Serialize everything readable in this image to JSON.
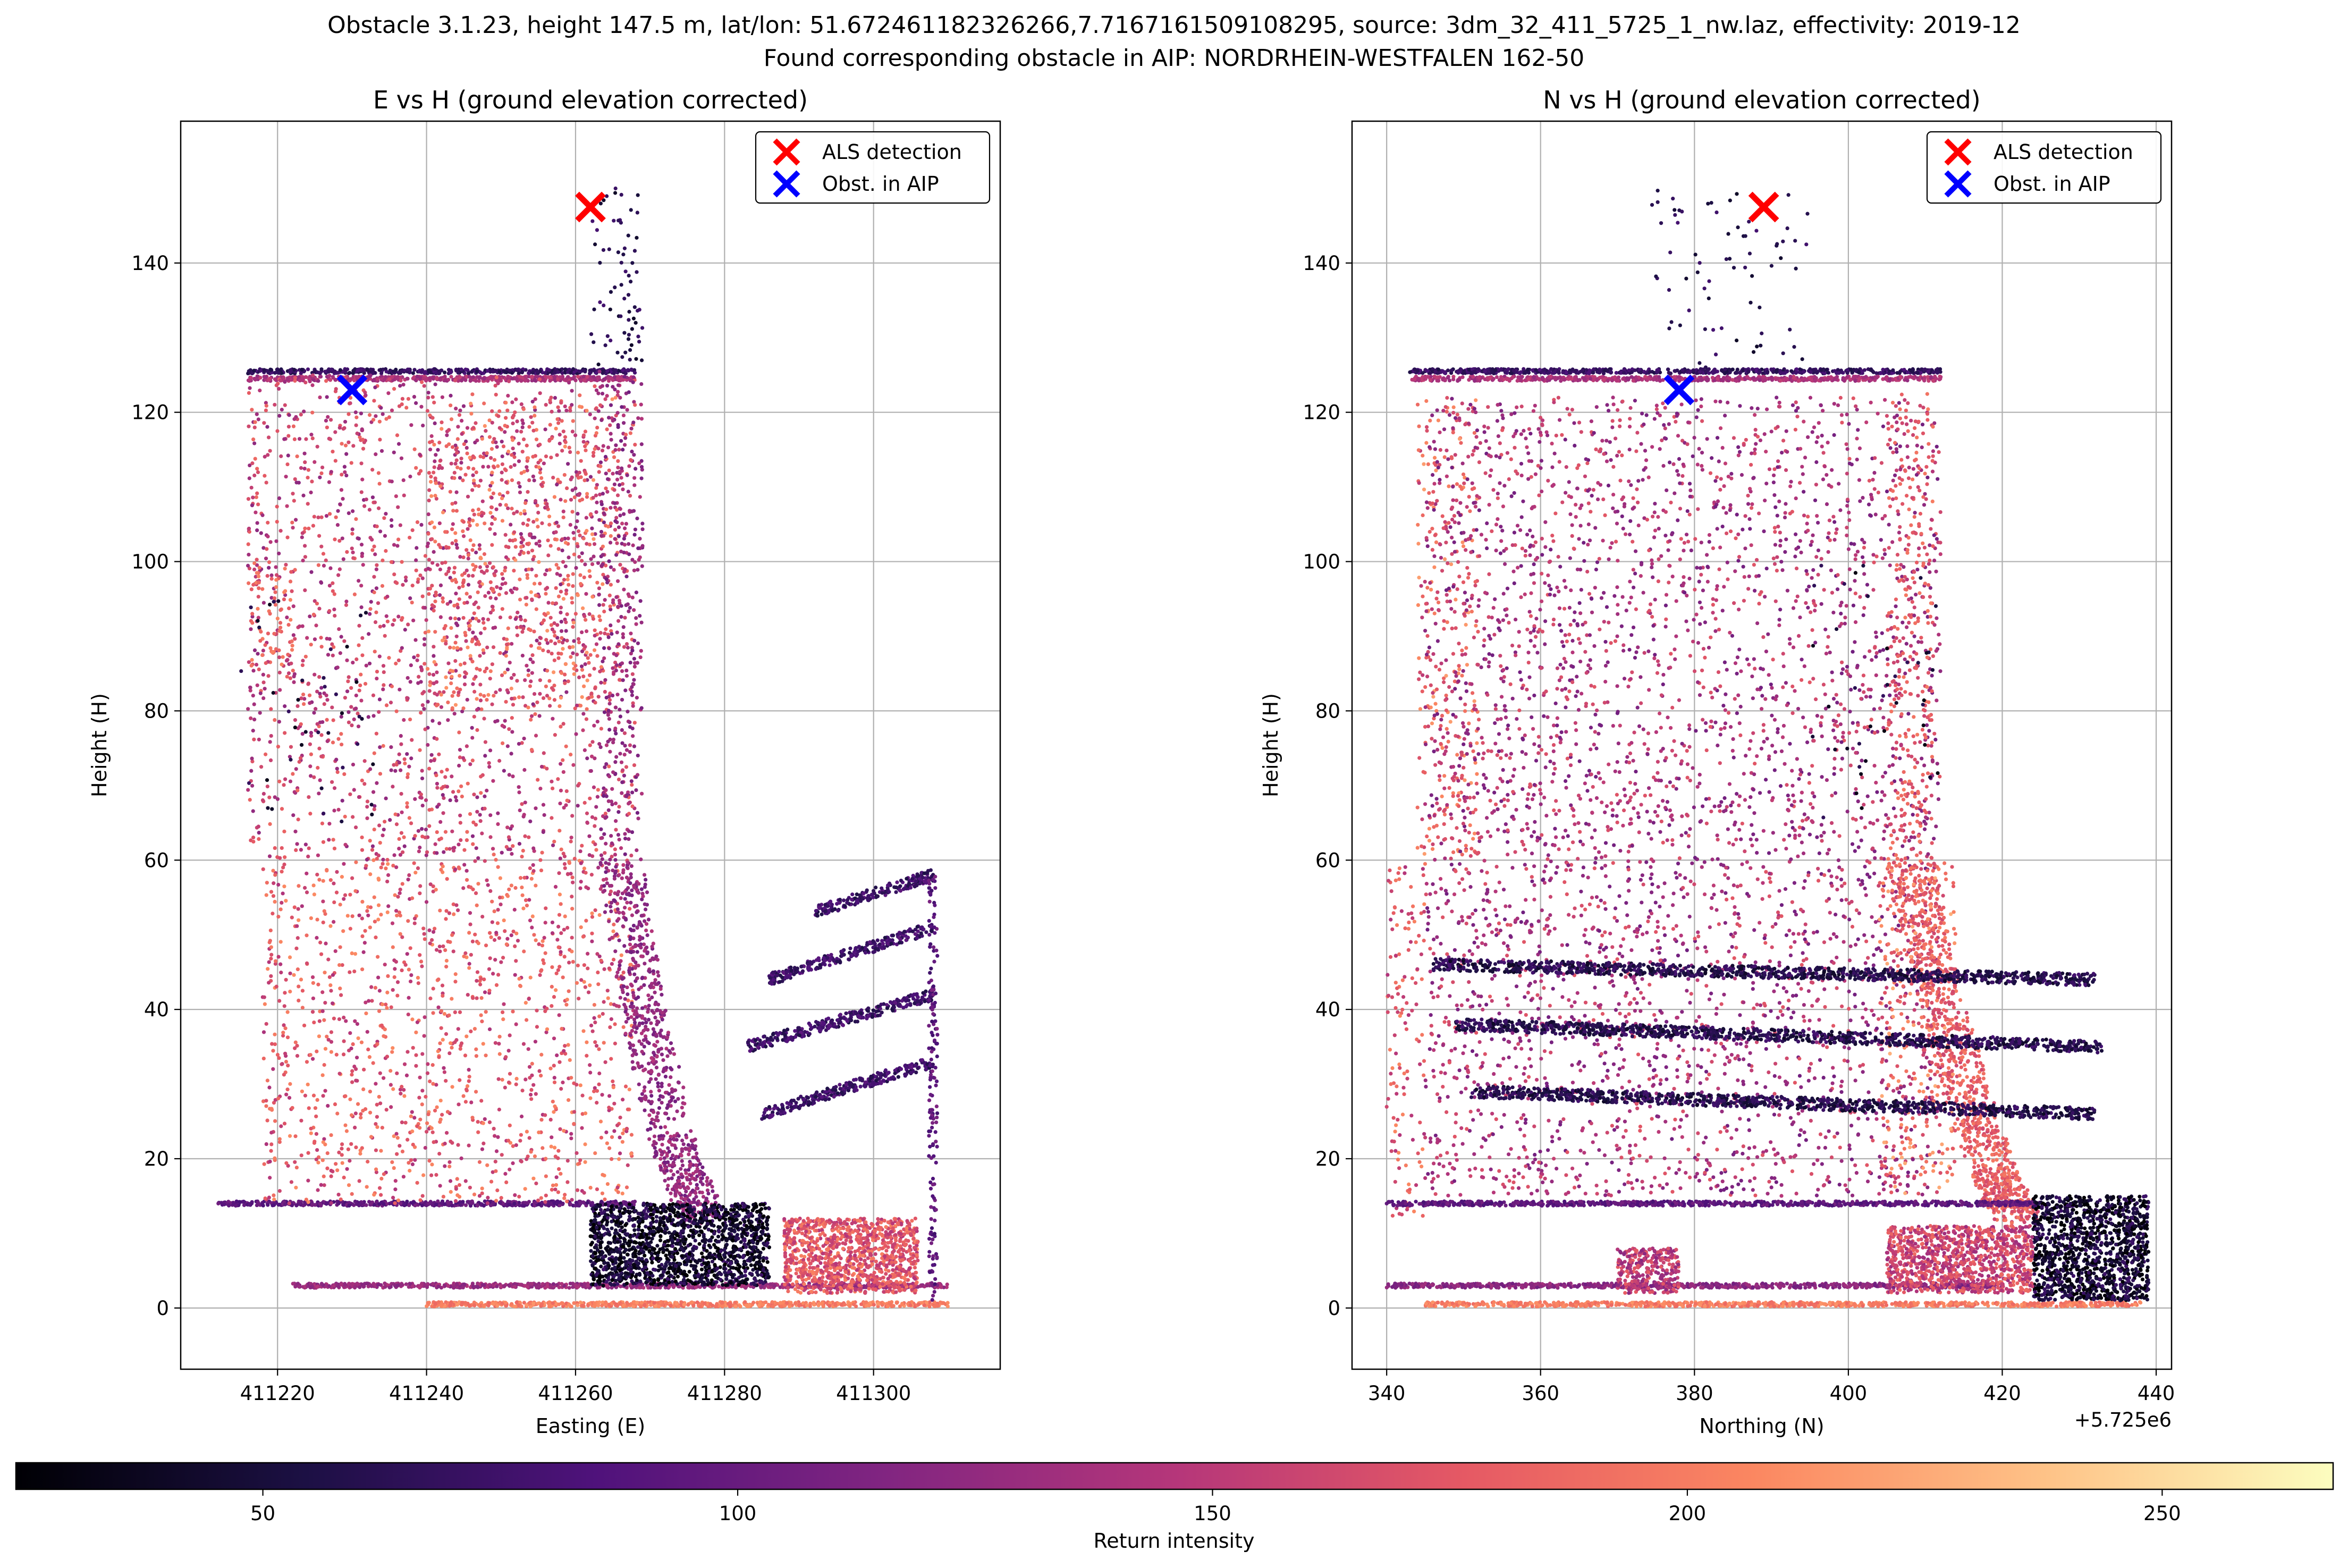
{
  "figure": {
    "title_line1": "Obstacle 3.1.23, height 147.5 m, lat/lon: 51.672461182326266,7.7167161509108295, source: 3dm_32_411_5725_1_nw.laz, effectivity: 2019-12",
    "title_line2": "Found corresponding obstacle in AIP: NORDRHEIN-WESTFALEN 162-50"
  },
  "colorbar": {
    "label": "Return intensity",
    "range": [
      24,
      268
    ],
    "ticks": [
      50,
      100,
      150,
      200,
      250
    ],
    "colormap": "magma",
    "stops": [
      "#000004",
      "#1c1044",
      "#4f127b",
      "#812581",
      "#b5367a",
      "#e55964",
      "#fb8761",
      "#fec287",
      "#fcfdbf"
    ]
  },
  "legend": {
    "entries": [
      {
        "label": "ALS detection",
        "color": "#ff0000",
        "marker": "x"
      },
      {
        "label": "Obst. in AIP",
        "color": "#0000ff",
        "marker": "x"
      }
    ],
    "placement": "upper-right"
  },
  "chart_data": [
    {
      "type": "scatter",
      "title": "E vs H (ground elevation corrected)",
      "xlabel": "Easting (E)",
      "ylabel": "Height (H)",
      "xlim": [
        411207,
        411317
      ],
      "ylim": [
        -8.2,
        159
      ],
      "xticks": [
        411220,
        411240,
        411260,
        411280,
        411300
      ],
      "yticks": [
        0,
        20,
        40,
        60,
        80,
        100,
        120,
        140
      ],
      "xtick_labels": [
        "411220",
        "411240",
        "411260",
        "411280",
        "411300"
      ],
      "ytick_labels": [
        "0",
        "20",
        "40",
        "60",
        "80",
        "100",
        "120",
        "140"
      ],
      "offset_text": "",
      "grid": true,
      "series": [
        {
          "name": "ALS detection",
          "color": "#ff0000",
          "marker": "x",
          "x": [
            411262
          ],
          "y": [
            147.5
          ]
        },
        {
          "name": "Obst. in AIP",
          "color": "#0000ff",
          "marker": "x",
          "x": [
            411230
          ],
          "y": [
            123
          ]
        }
      ],
      "point_cloud": {
        "color_by": "Return intensity",
        "structures": [
          {
            "shape": "hline",
            "x_range": [
              411216,
              411268
            ],
            "y": 125.5,
            "intensity": 70
          },
          {
            "shape": "hline",
            "x_range": [
              411216,
              411268
            ],
            "y": 124.5,
            "intensity": 140
          },
          {
            "shape": "hline",
            "x_range": [
              411212,
              411268
            ],
            "y": 14,
            "intensity": 95
          },
          {
            "shape": "hline",
            "x_range": [
              411222,
              411310
            ],
            "y": 3,
            "intensity": 130
          },
          {
            "shape": "hline",
            "x_range": [
              411240,
              411310
            ],
            "y": 0.5,
            "intensity": 200
          },
          {
            "shape": "area",
            "x_range": [
              411216,
              411268
            ],
            "y_range": [
              60,
              125
            ],
            "intensity": 155
          },
          {
            "shape": "area",
            "x_range": [
              411240,
              411266
            ],
            "y_range": [
              80,
              122
            ],
            "intensity": 180
          },
          {
            "shape": "area",
            "x_range": [
              411218,
              411268
            ],
            "y_range": [
              14,
              60
            ],
            "intensity": 175
          },
          {
            "shape": "edge_curve",
            "x": [
              411269,
              411269,
              411272,
              411276,
              411280
            ],
            "y": [
              125,
              60,
              40,
              22,
              12
            ],
            "intensity": 125
          },
          {
            "shape": "hline",
            "x_range": [
              411216,
              411222
            ],
            "y_range": [
              86,
              100
            ],
            "intensity": 190
          },
          {
            "shape": "blob",
            "x_range": [
              411262,
              411286
            ],
            "y_range": [
              3,
              14
            ],
            "intensity": 45
          },
          {
            "shape": "blob",
            "x_range": [
              411288,
              411306
            ],
            "y_range": [
              2,
              12
            ],
            "intensity": 175
          },
          {
            "shape": "line",
            "x": [
              411285,
              411308
            ],
            "y": [
              26,
              33
            ],
            "intensity": 75
          },
          {
            "shape": "line",
            "x": [
              411283,
              411308
            ],
            "y": [
              35,
              42
            ],
            "intensity": 75
          },
          {
            "shape": "line",
            "x": [
              411286,
              411308
            ],
            "y": [
              44,
              51
            ],
            "intensity": 75
          },
          {
            "shape": "line",
            "x": [
              411292,
              411308
            ],
            "y": [
              53,
              58
            ],
            "intensity": 75
          },
          {
            "shape": "vline",
            "x": 411308,
            "y_range": [
              0,
              58
            ],
            "intensity": 95
          },
          {
            "shape": "column",
            "x_range": [
              411262,
              411269
            ],
            "y_range": [
              126,
              150
            ],
            "intensity": 60
          },
          {
            "shape": "sparse",
            "x_range": [
              411215,
              411235
            ],
            "y_range": [
              65,
              95
            ],
            "intensity": 50
          }
        ]
      }
    },
    {
      "type": "scatter",
      "title": "N vs H (ground elevation corrected)",
      "xlabel": "Northing (N)",
      "ylabel": "Height (H)",
      "xlim": [
        5725335.5,
        5725442
      ],
      "ylim": [
        -8.2,
        159
      ],
      "xticks": [
        5725340,
        5725360,
        5725380,
        5725400,
        5725420,
        5725440
      ],
      "yticks": [
        0,
        20,
        40,
        60,
        80,
        100,
        120,
        140
      ],
      "xtick_labels": [
        "340",
        "360",
        "380",
        "400",
        "420",
        "440"
      ],
      "ytick_labels": [
        "0",
        "20",
        "40",
        "60",
        "80",
        "100",
        "120",
        "140"
      ],
      "offset_text": "+5.725e6",
      "grid": true,
      "series": [
        {
          "name": "ALS detection",
          "color": "#ff0000",
          "marker": "x",
          "x": [
            5725389
          ],
          "y": [
            147.5
          ]
        },
        {
          "name": "Obst. in AIP",
          "color": "#0000ff",
          "marker": "x",
          "x": [
            5725378
          ],
          "y": [
            123
          ]
        }
      ],
      "point_cloud": {
        "color_by": "Return intensity",
        "structures": [
          {
            "shape": "hline",
            "x_range": [
              5725343,
              5725412
            ],
            "y": 125.5,
            "intensity": 70
          },
          {
            "shape": "hline",
            "x_range": [
              5725343,
              5725412
            ],
            "y": 124.5,
            "intensity": 140
          },
          {
            "shape": "area",
            "x_range": [
              5725344,
              5725352
            ],
            "y_range": [
              60,
              122
            ],
            "intensity": 185
          },
          {
            "shape": "area",
            "x_range": [
              5725345,
              5725412
            ],
            "y_range": [
              15,
              122
            ],
            "intensity": 140
          },
          {
            "shape": "area",
            "x_range": [
              5725340,
              5725345
            ],
            "y_range": [
              12,
              60
            ],
            "intensity": 175
          },
          {
            "shape": "edge_curve",
            "x": [
              5725411,
              5725411,
              5725414,
              5725418,
              5725422,
              5725425
            ],
            "y": [
              122,
              60,
              45,
              30,
              18,
              12
            ],
            "intensity": 180
          },
          {
            "shape": "area",
            "x_range": [
              5725404,
              5725414
            ],
            "y_range": [
              15,
              60
            ],
            "intensity": 195
          },
          {
            "shape": "line",
            "x": [
              5725346,
              5725432
            ],
            "y": [
              46,
              44
            ],
            "intensity": 60
          },
          {
            "shape": "line",
            "x": [
              5725349,
              5725433
            ],
            "y": [
              38,
              35
            ],
            "intensity": 60
          },
          {
            "shape": "line",
            "x": [
              5725351,
              5725432
            ],
            "y": [
              29,
              26
            ],
            "intensity": 60
          },
          {
            "shape": "hline",
            "x_range": [
              5725340,
              5725425
            ],
            "y": 14,
            "intensity": 95
          },
          {
            "shape": "hline",
            "x_range": [
              5725340,
              5725420
            ],
            "y": 3,
            "intensity": 120
          },
          {
            "shape": "hline",
            "x_range": [
              5725345,
              5725438
            ],
            "y": 0.5,
            "intensity": 200
          },
          {
            "shape": "blob",
            "x_range": [
              5725424,
              5725439
            ],
            "y_range": [
              1,
              15
            ],
            "intensity": 45
          },
          {
            "shape": "blob",
            "x_range": [
              5725405,
              5725424
            ],
            "y_range": [
              2,
              11
            ],
            "intensity": 160
          },
          {
            "shape": "blob",
            "x_range": [
              5725370,
              5725378
            ],
            "y_range": [
              2,
              8
            ],
            "intensity": 150
          },
          {
            "shape": "column",
            "x_range": [
              5725374,
              5725395
            ],
            "y_range": [
              126,
              150
            ],
            "intensity": 60
          },
          {
            "shape": "sparse",
            "x_range": [
              5725395,
              5725412
            ],
            "y_range": [
              65,
              100
            ],
            "intensity": 50
          }
        ]
      }
    }
  ]
}
